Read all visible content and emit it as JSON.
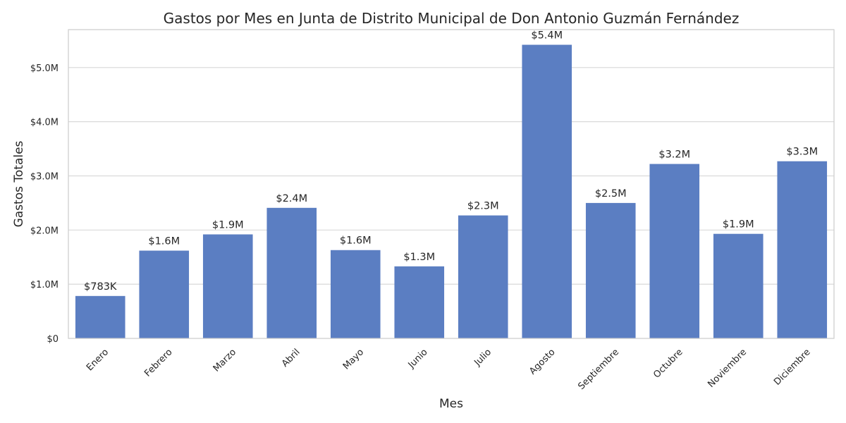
{
  "chart_data": {
    "type": "bar",
    "title": "Gastos por Mes en Junta de Distrito Municipal de Don Antonio Guzmán Fernández",
    "xlabel": "Mes",
    "ylabel": "Gastos Totales",
    "categories": [
      "Enero",
      "Febrero",
      "Marzo",
      "Abril",
      "Mayo",
      "Junio",
      "Julio",
      "Agosto",
      "Septiembre",
      "Octubre",
      "Noviembre",
      "Diciembre"
    ],
    "values": [
      783000,
      1620000,
      1920000,
      2410000,
      1630000,
      1330000,
      2270000,
      5420000,
      2500000,
      3220000,
      1930000,
      3270000
    ],
    "data_labels": [
      "$783K",
      "$1.6M",
      "$1.9M",
      "$2.4M",
      "$1.6M",
      "$1.3M",
      "$2.3M",
      "$5.4M",
      "$2.5M",
      "$3.2M",
      "$1.9M",
      "$3.3M"
    ],
    "y_ticks": [
      0,
      1000000,
      2000000,
      3000000,
      4000000,
      5000000
    ],
    "y_tick_labels": [
      "$0",
      "$1.0M",
      "$2.0M",
      "$3.0M",
      "$4.0M",
      "$5.0M"
    ],
    "ylim": [
      0,
      5700000
    ],
    "grid": true,
    "bar_color": "#5b7ec2"
  }
}
